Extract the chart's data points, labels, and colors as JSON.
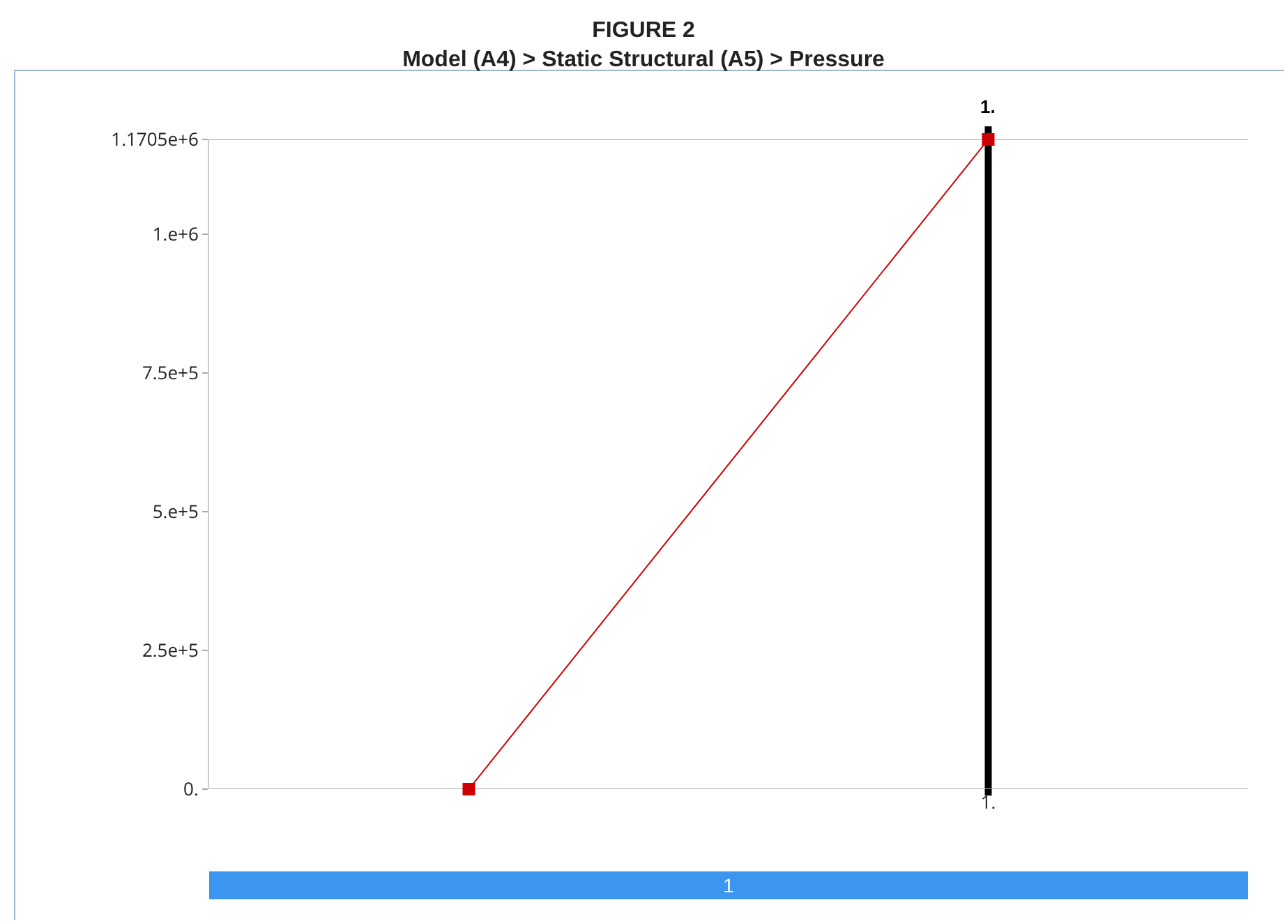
{
  "chart_data": {
    "type": "line",
    "title": "FIGURE 2",
    "subtitle": "Model (A4) > Static Structural (A5) > Pressure",
    "categories": [
      null,
      "1."
    ],
    "series": [
      {
        "color": "#cc0000",
        "values": [
          0,
          1170500
        ]
      }
    ],
    "ylim": [
      0,
      1170500
    ],
    "yticks": [
      {
        "value": 0,
        "label": "0."
      },
      {
        "value": 250000,
        "label": "2.5e+5"
      },
      {
        "value": 500000,
        "label": "5.e+5"
      },
      {
        "value": 750000,
        "label": "7.5e+5"
      },
      {
        "value": 1000000,
        "label": "1.e+6"
      },
      {
        "value": 1170500,
        "label": "1.1705e+6"
      }
    ],
    "ref_lines": [
      {
        "axis": "x",
        "value": "1.",
        "label": "1.",
        "color": "#000000"
      }
    ],
    "marker": "square",
    "grid": false,
    "annotations": [
      "1"
    ]
  }
}
